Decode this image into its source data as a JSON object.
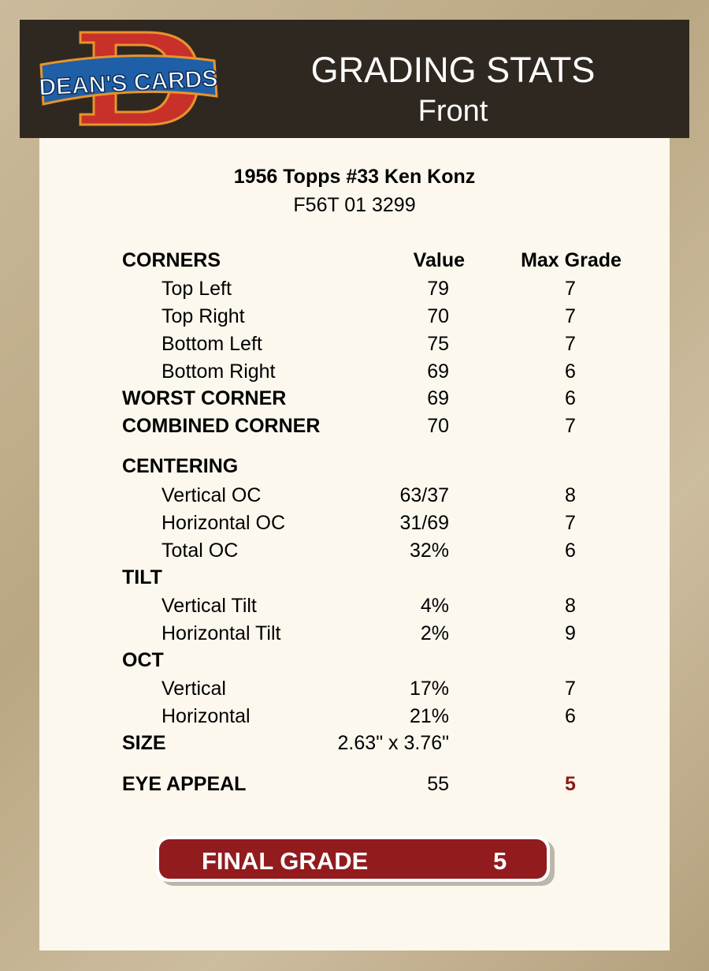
{
  "header": {
    "logo_text": "DEAN'S CARDS",
    "title": "GRADING STATS",
    "subtitle": "Front"
  },
  "card": {
    "name": "1956 Topps #33 Ken Konz",
    "cert": "F56T 01 3299"
  },
  "columns": {
    "value": "Value",
    "max_grade": "Max Grade"
  },
  "rows": [
    {
      "label": "CORNERS",
      "type": "sec",
      "value": "",
      "max": ""
    },
    {
      "label": "Top Left",
      "type": "sub",
      "value": "79",
      "max": "7"
    },
    {
      "label": "Top Right",
      "type": "sub",
      "value": "70",
      "max": "7"
    },
    {
      "label": "Bottom Left",
      "type": "sub",
      "value": "75",
      "max": "7"
    },
    {
      "label": "Bottom Right",
      "type": "sub",
      "value": "69",
      "max": "6"
    },
    {
      "label": "WORST CORNER",
      "type": "sec",
      "value": "69",
      "max": "6"
    },
    {
      "label": "COMBINED CORNER",
      "type": "sec",
      "value": "70",
      "max": "7"
    },
    {
      "label": "CENTERING",
      "type": "sec",
      "value": "",
      "max": ""
    },
    {
      "label": "Vertical OC",
      "type": "sub",
      "value": "63/37",
      "max": "8"
    },
    {
      "label": "Horizontal OC",
      "type": "sub",
      "value": "31/69",
      "max": "7"
    },
    {
      "label": "Total OC",
      "type": "sub",
      "value": "32%",
      "max": "6"
    },
    {
      "label": "TILT",
      "type": "sec",
      "value": "",
      "max": ""
    },
    {
      "label": "Vertical Tilt",
      "type": "sub",
      "value": "4%",
      "max": "8"
    },
    {
      "label": "Horizontal Tilt",
      "type": "sub",
      "value": "2%",
      "max": "9"
    },
    {
      "label": "OCT",
      "type": "sec",
      "value": "",
      "max": ""
    },
    {
      "label": "Vertical",
      "type": "sub",
      "value": "17%",
      "max": "7"
    },
    {
      "label": "Horizontal",
      "type": "sub",
      "value": "21%",
      "max": "6"
    },
    {
      "label": "SIZE",
      "type": "sec",
      "value": "2.63\" x 3.76\"",
      "max": ""
    },
    {
      "label": "EYE APPEAL",
      "type": "sec",
      "value": "55",
      "max": "5",
      "highlight": true
    }
  ],
  "final": {
    "label": "FINAL GRADE",
    "value": "5"
  },
  "colors": {
    "accent": "#921b1e",
    "header_bg": "#2f2820",
    "panel_bg": "#fcf8ee"
  }
}
